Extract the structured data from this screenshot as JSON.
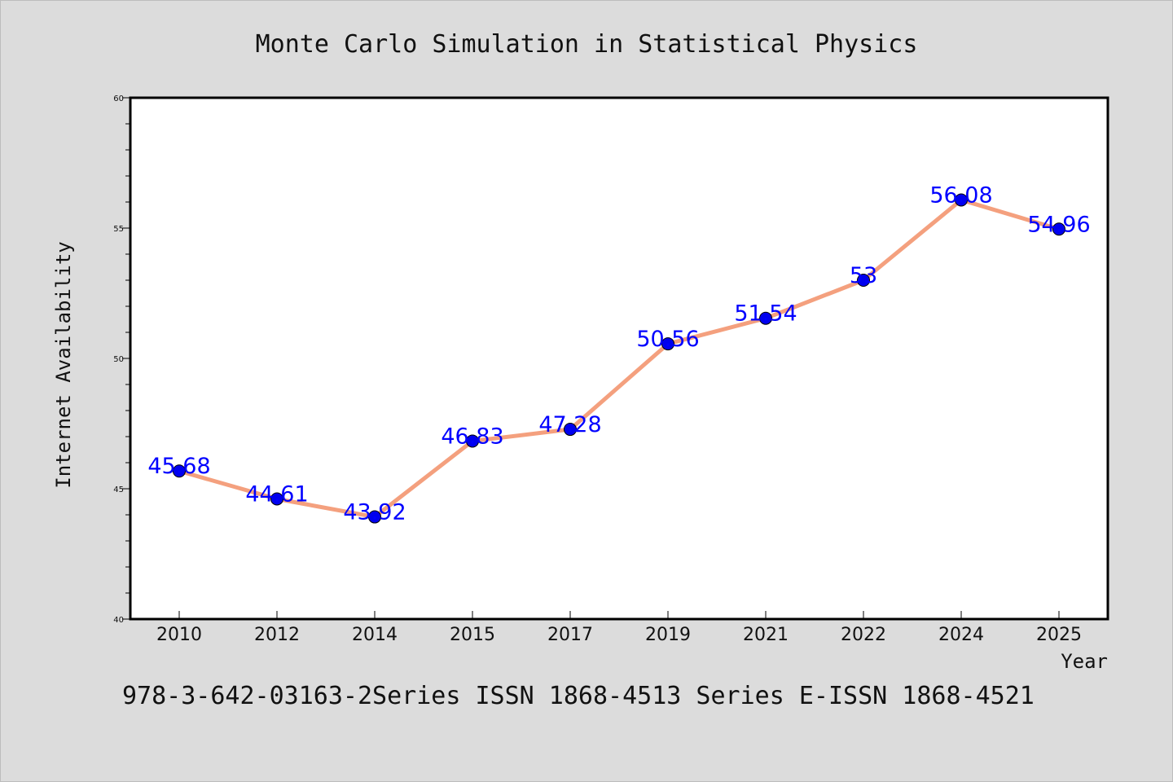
{
  "chart_data": {
    "type": "line",
    "title": "Monte Carlo Simulation in Statistical Physics",
    "xlabel": "Year",
    "ylabel": "Internet Availability",
    "categories": [
      "2010",
      "2012",
      "2014",
      "2015",
      "2017",
      "2019",
      "2021",
      "2022",
      "2024",
      "2025"
    ],
    "series": [
      {
        "values": [
          45.68,
          44.61,
          43.92,
          46.83,
          47.28,
          50.56,
          51.54,
          53,
          56.08,
          54.96
        ],
        "data_labels": [
          "45.68",
          "44.61",
          "43.92",
          "46.83",
          "47.28",
          "50.56",
          "51.54",
          "53",
          "56.08",
          "54.96"
        ]
      }
    ],
    "ylim": [
      40,
      60
    ],
    "yticks": [
      "40",
      "45",
      "50",
      "55",
      "60"
    ],
    "grid": false,
    "line_color": "#f4a07e",
    "marker_color": "#0000ee",
    "label_color": "#0000ff",
    "footer": "978-3-642-03163-2Series ISSN 1868-4513 Series E-ISSN 1868-4521"
  }
}
